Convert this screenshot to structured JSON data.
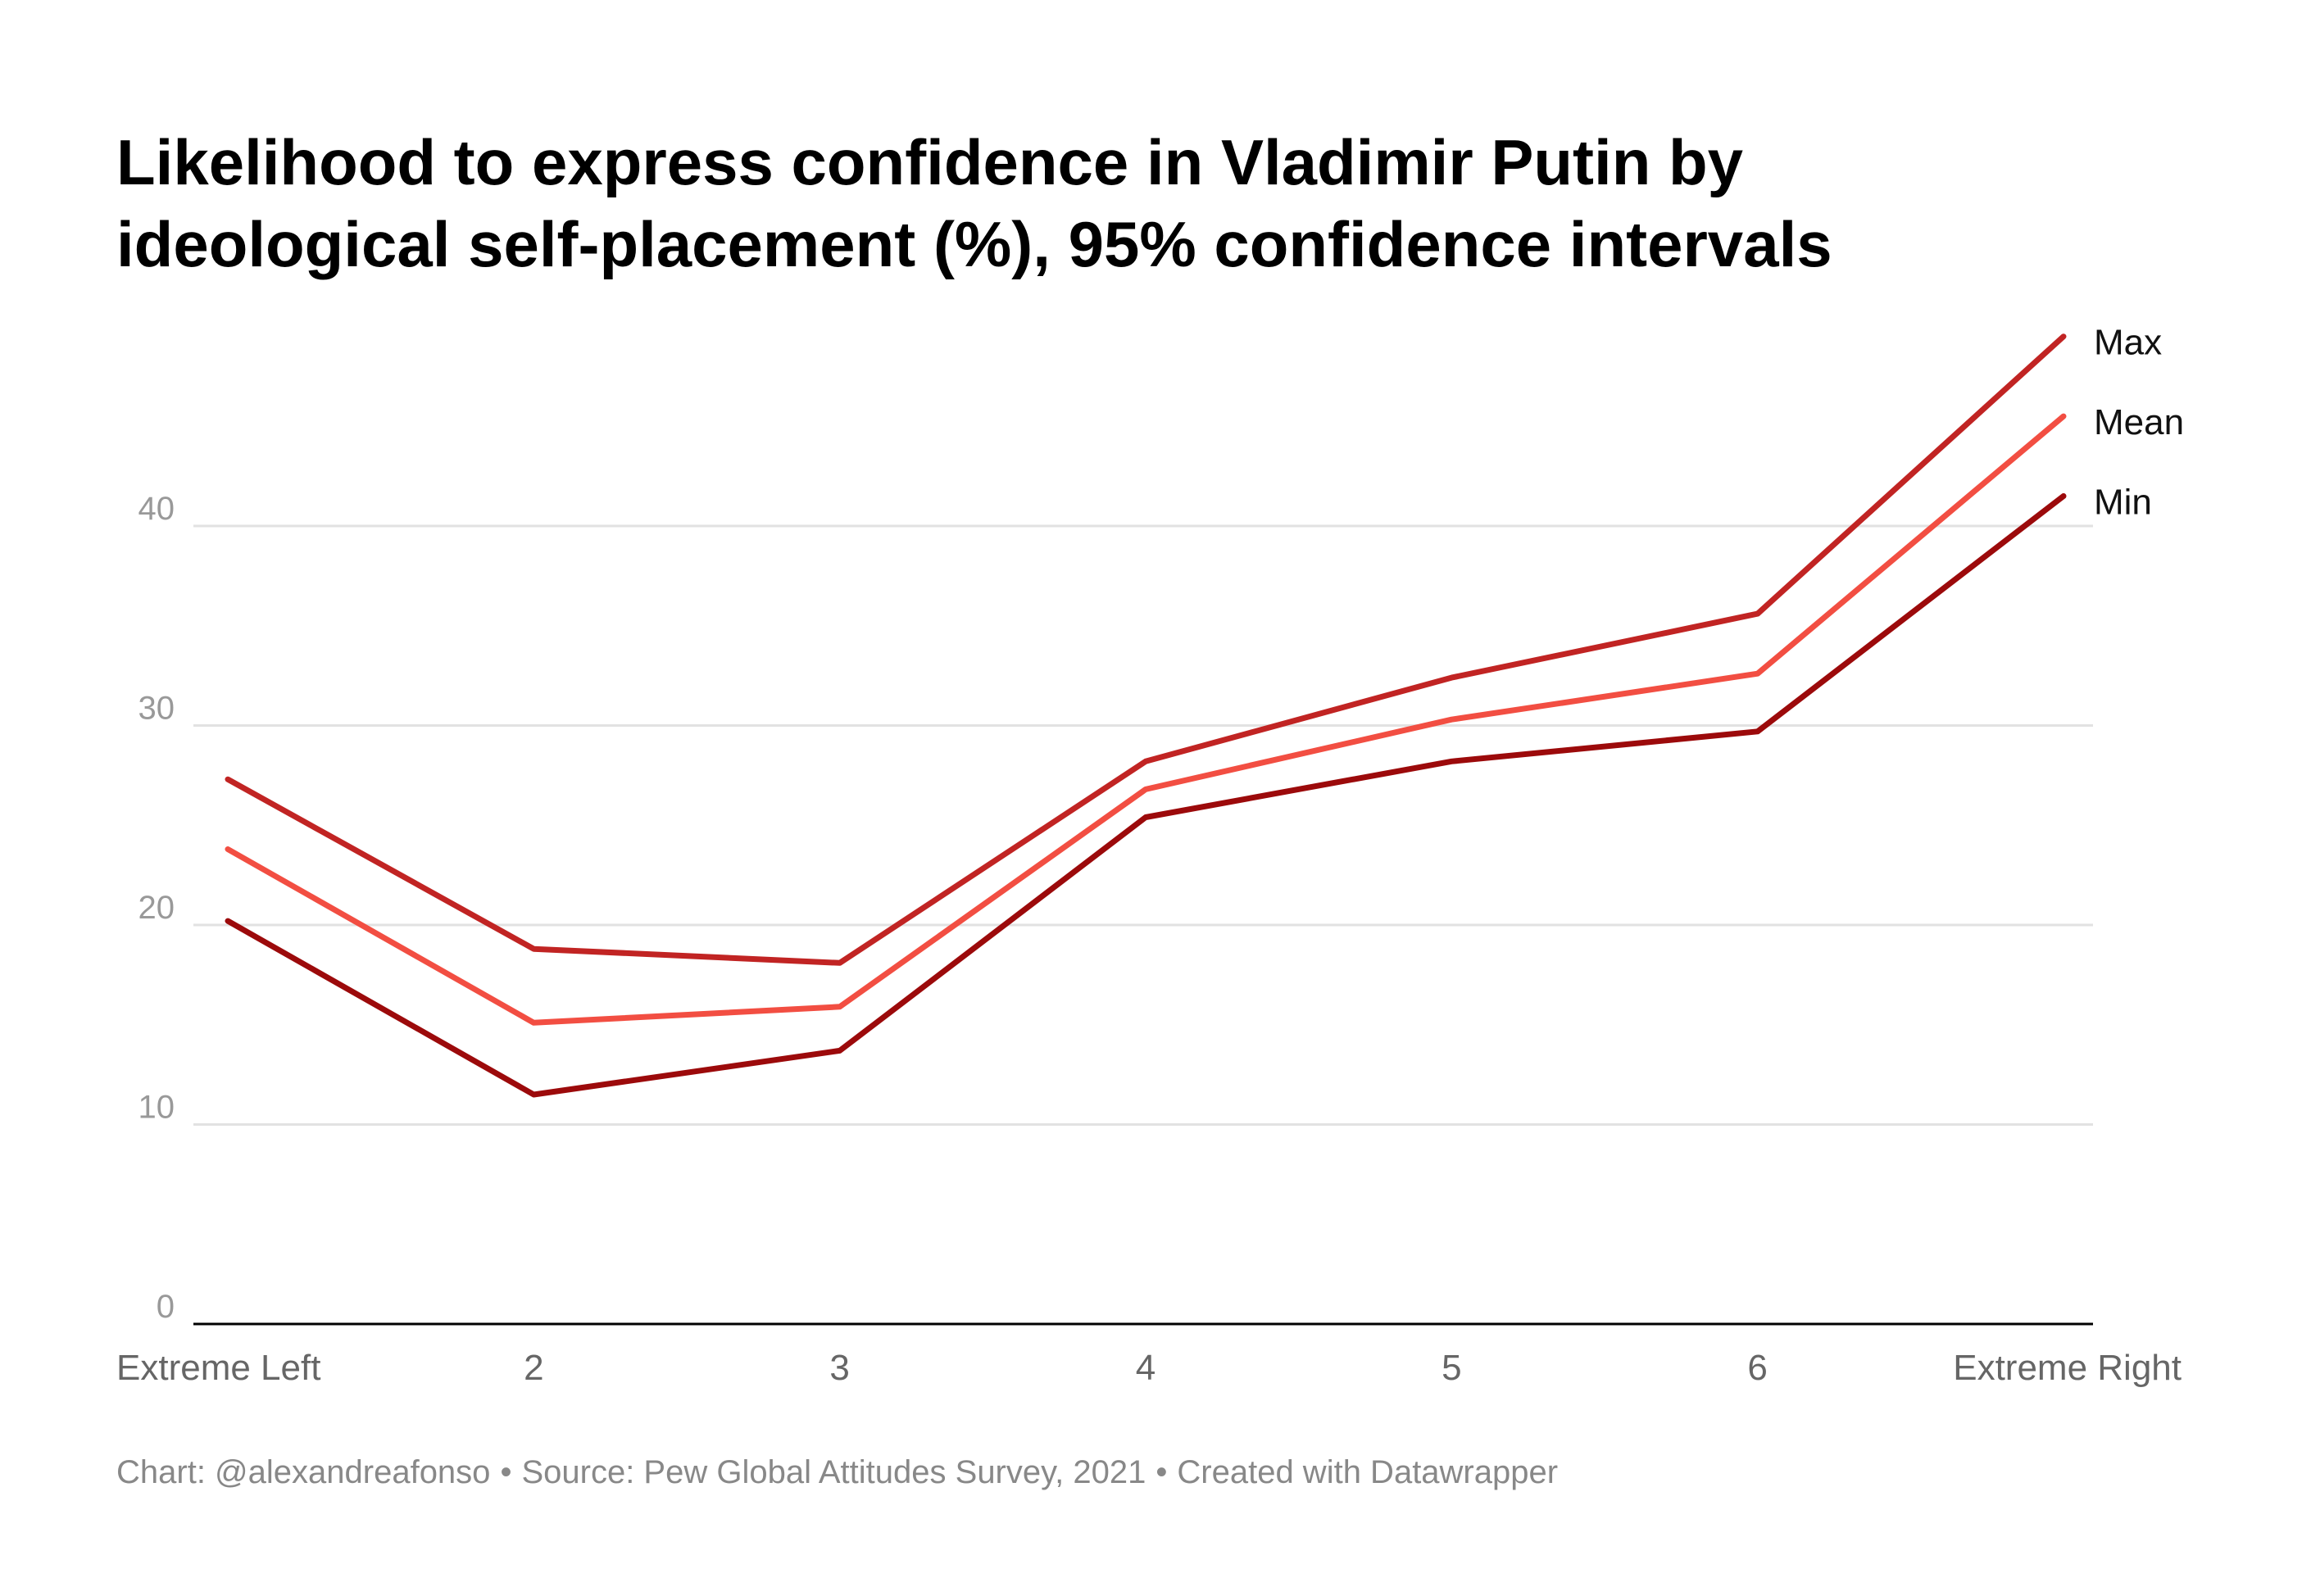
{
  "title_lines": [
    "Likelihood to express confidence in Vladimir Putin by",
    "ideological self-placement (%), 95% confidence intervals"
  ],
  "footer": {
    "chart_credit": "Chart: @alexandreafonso",
    "separator": "•",
    "source": "Source: Pew Global Attitudes Survey, 2021",
    "created": "Created with Datawrapper"
  },
  "colors": {
    "max": "#c12423",
    "mean": "#f24e42",
    "min": "#9c0a0b",
    "grid": "#e2e2e2",
    "axis": "#000000",
    "tick_text": "#999999",
    "category_text": "#666666"
  },
  "chart_data": {
    "type": "line",
    "title": "Likelihood to express confidence in Vladimir Putin by ideological self-placement (%), 95% confidence intervals",
    "categories": [
      "Extreme Left",
      "2",
      "3",
      "4",
      "5",
      "6",
      "Extreme Right"
    ],
    "y_ticks": [
      0,
      10,
      20,
      30,
      40
    ],
    "ylim": [
      0,
      50
    ],
    "grid": true,
    "legend": "line-end labels, right",
    "series": [
      {
        "name": "Max",
        "color_key": "max",
        "values": [
          27.3,
          18.8,
          18.1,
          28.2,
          32.4,
          35.6,
          49.5
        ]
      },
      {
        "name": "Mean",
        "color_key": "mean",
        "values": [
          23.8,
          15.1,
          15.9,
          26.8,
          30.3,
          32.6,
          45.5
        ]
      },
      {
        "name": "Min",
        "color_key": "min",
        "values": [
          20.2,
          11.5,
          13.7,
          25.4,
          28.2,
          29.7,
          41.5
        ]
      }
    ]
  }
}
